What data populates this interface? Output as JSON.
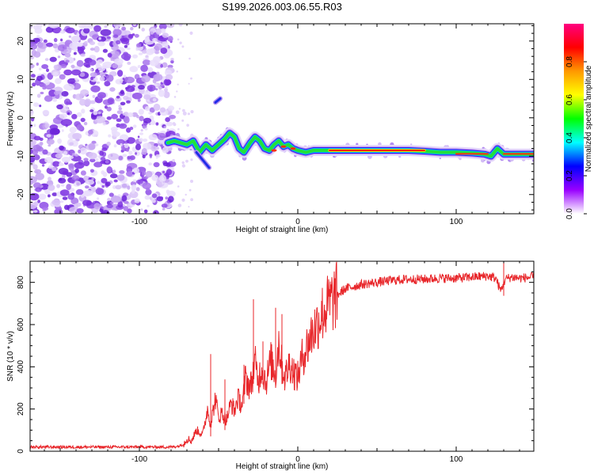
{
  "title": "S199.2026.003.06.55.R03",
  "chart_data": [
    {
      "type": "heatmap",
      "name": "spectrogram",
      "xlabel": "Height of straight line (km)",
      "ylabel": "Frequency (Hz)",
      "xlim": [
        -169,
        149
      ],
      "ylim": [
        -25,
        24.5
      ],
      "xticks": [
        -100,
        0,
        100
      ],
      "xtick_labels": [
        "-100",
        "0",
        "100"
      ],
      "yticks": [
        -20,
        -10,
        0,
        10,
        20
      ],
      "ytick_labels": [
        "-20",
        "-10",
        "0",
        "10",
        "20"
      ],
      "noise_region_x": [
        -169,
        -79
      ],
      "ridge": {
        "x": [
          -82,
          -78,
          -74,
          -70,
          -66,
          -62,
          -58,
          -54,
          -50,
          -46,
          -43,
          -40,
          -37,
          -34,
          -30,
          -27,
          -24,
          -21,
          -18,
          -15,
          -12,
          -9,
          -6,
          -3,
          0,
          5,
          10,
          20,
          30,
          40,
          50,
          60,
          70,
          80,
          90,
          100,
          110,
          118,
          122,
          126,
          130,
          140,
          149
        ],
        "y": [
          -6.5,
          -6,
          -6.5,
          -7,
          -6,
          -9,
          -7,
          -8.5,
          -7,
          -5.5,
          -4,
          -5,
          -8,
          -9,
          -6.5,
          -5,
          -6,
          -8,
          -8.5,
          -7,
          -6,
          -7.5,
          -7,
          -8,
          -8.5,
          -9,
          -8.5,
          -8.5,
          -8.5,
          -8.5,
          -8.5,
          -8.5,
          -8.5,
          -8.7,
          -9,
          -9,
          -9.2,
          -9.5,
          -10,
          -8,
          -9.5,
          -9.5,
          -9.5
        ]
      },
      "streaks": [
        {
          "x": [
            -64,
            -56
          ],
          "y": [
            -9,
            -13
          ]
        },
        {
          "x": [
            -52,
            -49
          ],
          "y": [
            4,
            5
          ]
        }
      ],
      "colorbar": {
        "label": "Normalized spectral amplitude",
        "range": [
          0,
          1
        ],
        "ticks": [
          0.0,
          0.2,
          0.4,
          0.6,
          0.8
        ],
        "tick_labels": [
          "0.0",
          "0.2",
          "0.4",
          "0.6",
          "0.8"
        ],
        "colors": [
          "#ffffff",
          "#9900ff",
          "#0000ff",
          "#00ffff",
          "#00ff00",
          "#ffff00",
          "#ff9900",
          "#ff0000",
          "#ff0080"
        ]
      }
    },
    {
      "type": "line",
      "name": "snr",
      "xlabel": "Height of straight line (km)",
      "ylabel": "SNR (10 * v/v)",
      "xlim": [
        -169,
        149
      ],
      "ylim": [
        0,
        900
      ],
      "xticks": [
        -100,
        0,
        100
      ],
      "xtick_labels": [
        "-100",
        "0",
        "100"
      ],
      "yticks": [
        0,
        200,
        400,
        600,
        800
      ],
      "ytick_labels": [
        "0",
        "200",
        "400",
        "600",
        "800"
      ],
      "color": "#e8262a",
      "series": [
        {
          "name": "SNR",
          "x": [
            -169,
            -150,
            -130,
            -110,
            -90,
            -80,
            -75,
            -72,
            -70,
            -67,
            -64,
            -60,
            -57,
            -55,
            -52,
            -50,
            -48,
            -45,
            -42,
            -40,
            -38,
            -35,
            -33,
            -30,
            -27,
            -25,
            -23,
            -20,
            -17,
            -14,
            -12,
            -10,
            -8,
            -5,
            -3,
            0,
            3,
            6,
            9,
            12,
            15,
            20,
            25,
            30,
            40,
            50,
            60,
            70,
            80,
            90,
            100,
            110,
            120,
            125,
            128,
            131,
            135,
            140,
            149
          ],
          "y": [
            20,
            20,
            20,
            20,
            20,
            20,
            25,
            35,
            60,
            50,
            100,
            80,
            200,
            130,
            250,
            160,
            180,
            150,
            230,
            190,
            250,
            220,
            350,
            300,
            420,
            330,
            400,
            330,
            430,
            360,
            520,
            400,
            350,
            420,
            380,
            350,
            450,
            500,
            560,
            600,
            650,
            700,
            740,
            770,
            790,
            800,
            810,
            815,
            815,
            820,
            820,
            825,
            830,
            820,
            760,
            815,
            825,
            820,
            825
          ]
        }
      ],
      "spikes": [
        {
          "x": -55,
          "y": 460
        },
        {
          "x": -46,
          "y": 340
        },
        {
          "x": -34,
          "y": 410
        },
        {
          "x": -28,
          "y": 720
        },
        {
          "x": -22,
          "y": 520
        },
        {
          "x": -14,
          "y": 680
        },
        {
          "x": -10,
          "y": 650
        },
        {
          "x": 128,
          "y": 700
        },
        {
          "x": 130,
          "y": 895
        }
      ]
    }
  ]
}
